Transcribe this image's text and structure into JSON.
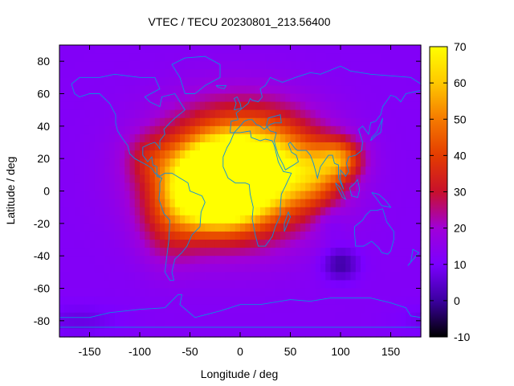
{
  "chart_data": {
    "type": "heatmap",
    "title": "VTEC / TECU 20230801_213.56400",
    "xlabel": "Longitude / deg",
    "ylabel": "Latitude / deg",
    "xlim": [
      -180,
      180
    ],
    "ylim": [
      -90,
      90
    ],
    "xticks": [
      "-150",
      "-100",
      "-50",
      "0",
      "50",
      "100",
      "150"
    ],
    "yticks": [
      "80",
      "60",
      "40",
      "20",
      "0",
      "-20",
      "-40",
      "-60",
      "-80"
    ],
    "colorbar": {
      "range": [
        -10,
        70
      ],
      "ticks": [
        "70",
        "60",
        "50",
        "40",
        "30",
        "20",
        "10",
        "0",
        "-10"
      ],
      "palette": [
        "#000000",
        "#3b00a0",
        "#7b00ff",
        "#a000d8",
        "#c8102c",
        "#e43c00",
        "#f57a00",
        "#ffc800",
        "#ffff00"
      ]
    },
    "background_level": 12,
    "features": [
      {
        "lon": -25,
        "lat": 2,
        "peak": 70,
        "spread_lon": 40,
        "spread_lat": 22
      },
      {
        "lon": -10,
        "lat": 10,
        "peak": 46,
        "spread_lon": 75,
        "spread_lat": 38
      },
      {
        "lon": 20,
        "lat": 15,
        "peak": 36,
        "spread_lon": 60,
        "spread_lat": 30
      },
      {
        "lon": 100,
        "lat": 20,
        "peak": 30,
        "spread_lon": 22,
        "spread_lat": 12
      },
      {
        "lon": 75,
        "lat": 10,
        "peak": 22,
        "spread_lon": 30,
        "spread_lat": 18
      },
      {
        "lon": -70,
        "lat": -20,
        "peak": 16,
        "spread_lon": 30,
        "spread_lat": 25
      },
      {
        "lon": -90,
        "lat": 20,
        "peak": 12,
        "spread_lon": 25,
        "spread_lat": 15
      },
      {
        "lon": 100,
        "lat": -45,
        "peak": -12,
        "spread_lon": 18,
        "spread_lat": 10
      },
      {
        "lon": 90,
        "lat": -20,
        "peak": -5,
        "spread_lon": 15,
        "spread_lat": 10
      },
      {
        "lon": -160,
        "lat": -80,
        "peak": -5,
        "spread_lon": 40,
        "spread_lat": 10
      }
    ],
    "coastline_color": "#0a8fe0"
  }
}
